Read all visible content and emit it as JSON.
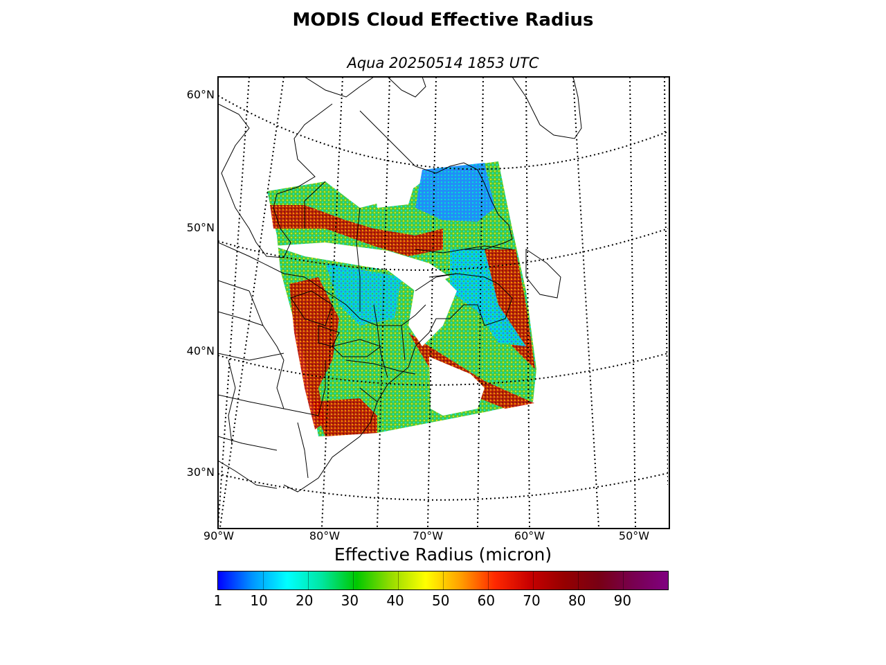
{
  "title": "MODIS Cloud Effective Radius",
  "subtitle": "Aqua 20250514 1853 UTC",
  "lat_labels": [
    "60°N",
    "50°N",
    "40°N",
    "30°N"
  ],
  "lon_labels": [
    "90°W",
    "80°W",
    "70°W",
    "60°W",
    "50°W"
  ],
  "colorbar": {
    "label": "Effective Radius (micron)",
    "ticks": [
      "1",
      "10",
      "20",
      "30",
      "40",
      "50",
      "60",
      "70",
      "80",
      "90"
    ],
    "range": [
      1,
      100
    ],
    "stops": [
      "#0000ff",
      "#0096ff",
      "#00ffff",
      "#00e6a0",
      "#00c800",
      "#96dc00",
      "#ffff00",
      "#ffa000",
      "#ff2800",
      "#c80000",
      "#960000",
      "#780014",
      "#780050",
      "#800080"
    ]
  },
  "colors": {
    "blue": "#1e64ff",
    "cyan": "#00dcdc",
    "green": "#3cc83c",
    "yellow": "#dcdc00",
    "orange": "#ff8c00",
    "red": "#dc1e00",
    "darkred": "#8c0000"
  }
}
